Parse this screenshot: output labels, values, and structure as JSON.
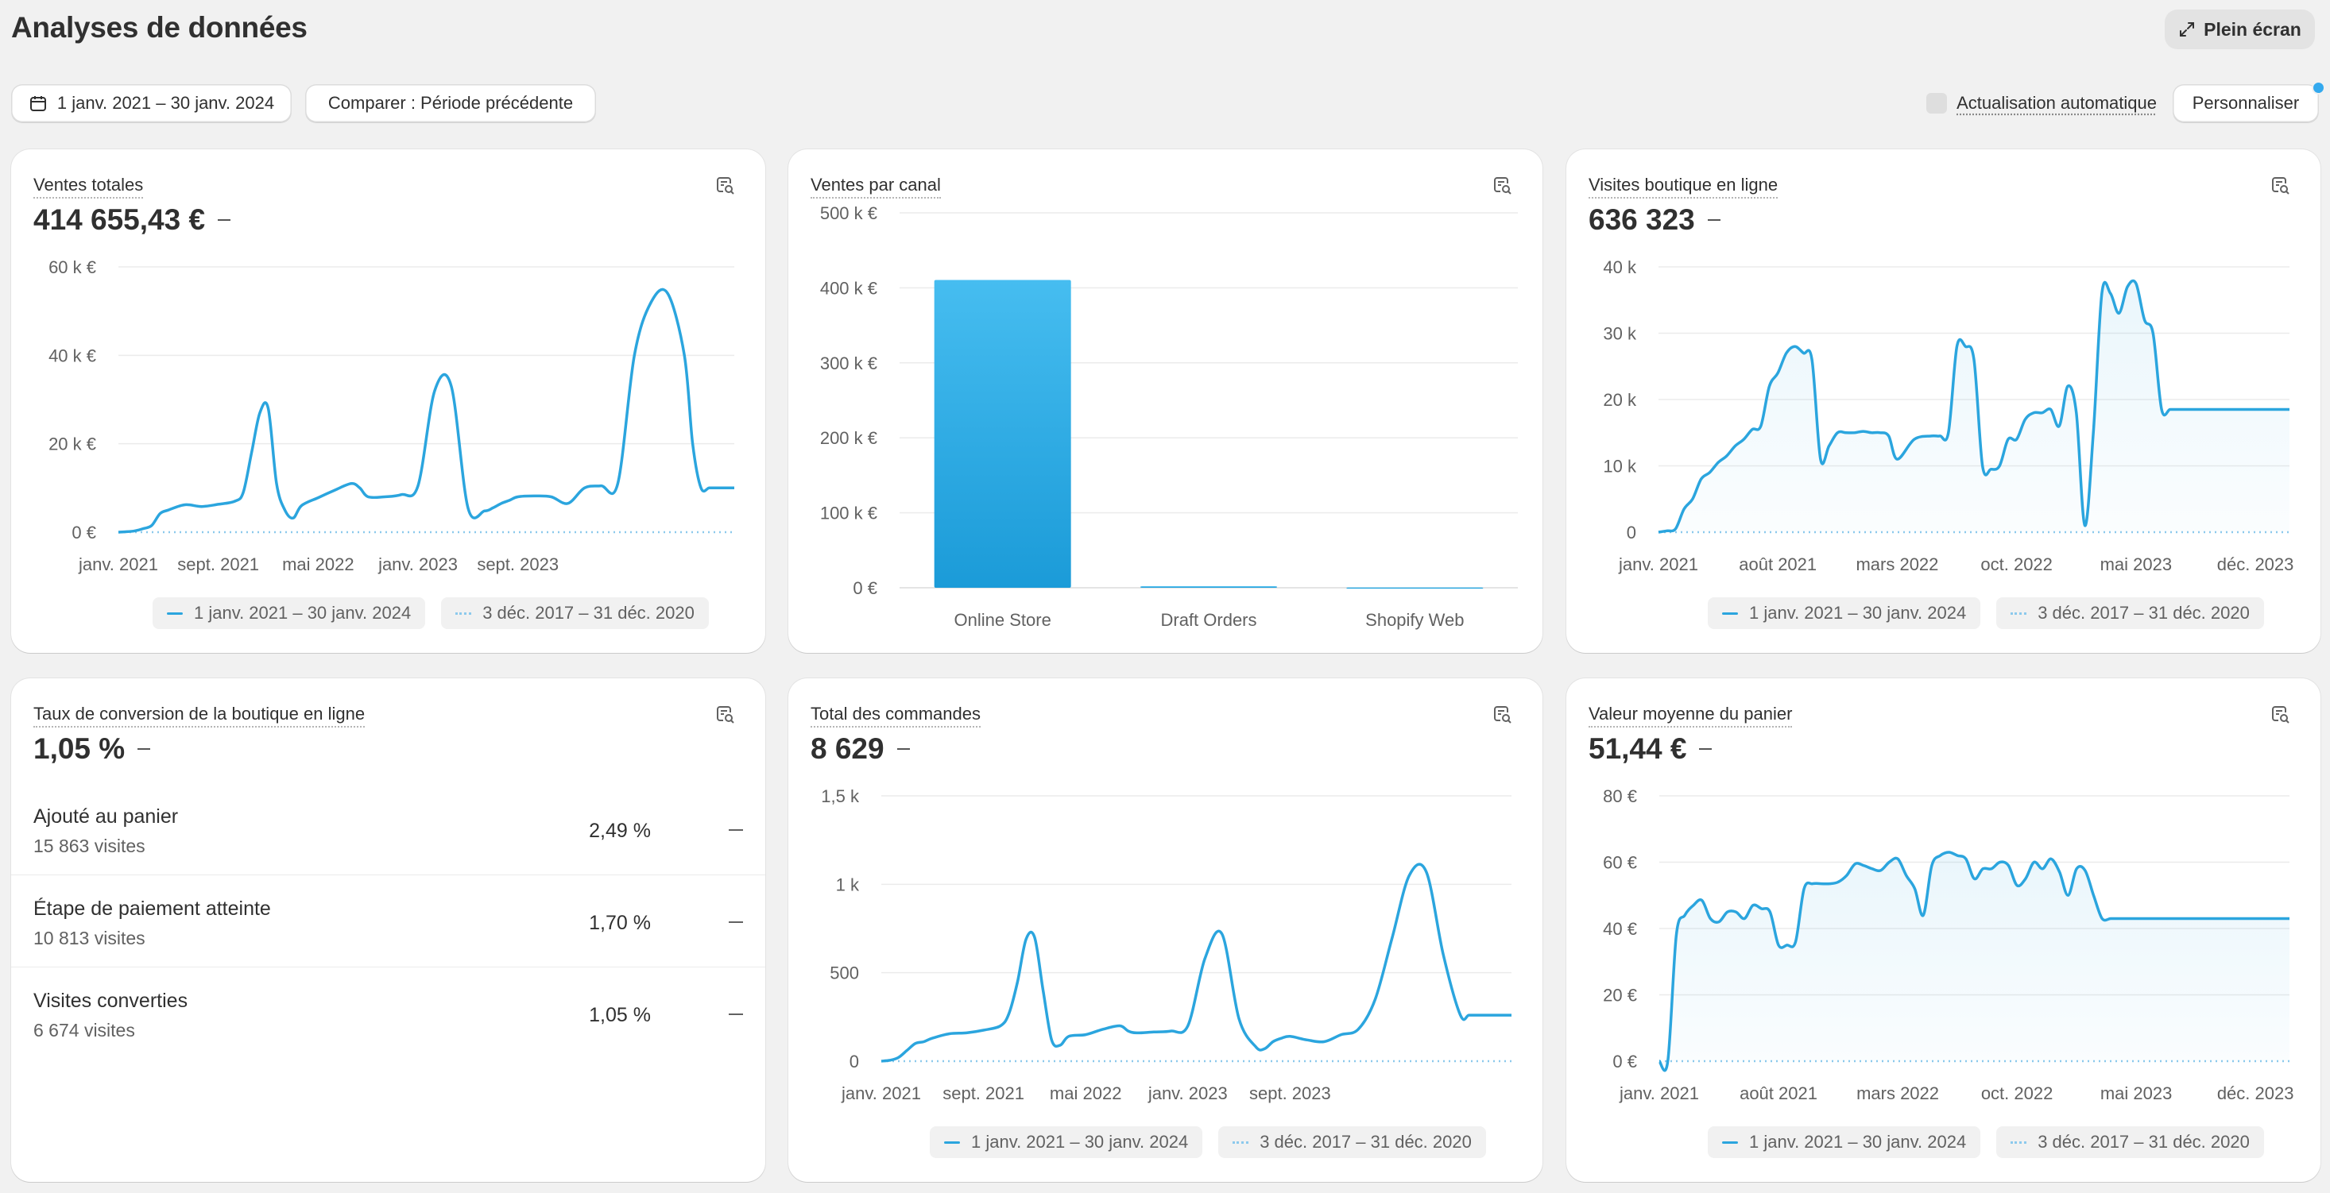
{
  "page": {
    "title": "Analyses de données",
    "fullscreen_label": "Plein écran"
  },
  "toolbar": {
    "date_range": "1 janv. 2021 – 30 janv. 2024",
    "compare": "Comparer : Période précédente",
    "auto_refresh": "Actualisation automatique",
    "customize": "Personnaliser"
  },
  "legend": {
    "current": "1 janv. 2021 – 30 janv. 2024",
    "previous": "3 déc. 2017 – 31 déc. 2020"
  },
  "colors": {
    "accent": "#2ba5de",
    "previous": "#8cc9ec",
    "bar_top": "#46bdf0",
    "bar_bottom": "#1b9bd8"
  },
  "cards": {
    "total_sales": {
      "title": "Ventes totales",
      "value": "414 655,43 €"
    },
    "sales_by_channel": {
      "title": "Ventes par canal"
    },
    "online_store_sessions": {
      "title": "Visites boutique en ligne",
      "value": "636 323"
    },
    "conversion_rate": {
      "title": "Taux de conversion de la boutique en ligne",
      "value": "1,05 %",
      "rows": [
        {
          "label": "Ajouté au panier",
          "count": "15 863 visites",
          "pct": "2,49 %"
        },
        {
          "label": "Étape de paiement atteinte",
          "count": "10 813 visites",
          "pct": "1,70 %"
        },
        {
          "label": "Visites converties",
          "count": "6 674 visites",
          "pct": "1,05 %"
        }
      ]
    },
    "total_orders": {
      "title": "Total des commandes",
      "value": "8 629"
    },
    "average_order_value": {
      "title": "Valeur moyenne du panier",
      "value": "51,44 €"
    }
  },
  "chart_data": [
    {
      "id": "total_sales",
      "type": "line",
      "yticks": [
        "0 €",
        "20 k €",
        "40 k €",
        "60 k €"
      ],
      "ylim": [
        0,
        60000
      ],
      "xticks": [
        "janv. 2021",
        "sept. 2021",
        "mai 2022",
        "janv. 2023",
        "sept. 2023"
      ],
      "series": [
        {
          "name": "1 janv. 2021 – 30 janv. 2024",
          "x": [
            0,
            0.5,
            1,
            1.5,
            2,
            2.5,
            3,
            4,
            5,
            6,
            7,
            7.5,
            8,
            8.5,
            9,
            9.5,
            10,
            10.5,
            11,
            12,
            13,
            14,
            14.5,
            15,
            16,
            17,
            18,
            19,
            20,
            21,
            22,
            22.5,
            23,
            23.5,
            24,
            25,
            26,
            27,
            28,
            29,
            30,
            31,
            32,
            33,
            34,
            34.5,
            35,
            35.5,
            36,
            36.5,
            37
          ],
          "values": [
            0,
            100,
            300,
            800,
            1500,
            4200,
            5000,
            6200,
            5800,
            6300,
            7000,
            9000,
            18000,
            27000,
            28000,
            11000,
            5000,
            3200,
            6000,
            7800,
            9500,
            11000,
            10000,
            8000,
            8000,
            8500,
            10500,
            32000,
            33000,
            5500,
            4800,
            5500,
            6500,
            7200,
            8000,
            8200,
            8000,
            6500,
            10000,
            10500,
            11000,
            40000,
            52000,
            54000,
            40000,
            20000,
            10000,
            10000,
            10000,
            10000,
            10000
          ]
        },
        {
          "name": "3 déc. 2017 – 31 déc. 2020",
          "values": [
            0,
            0
          ]
        }
      ]
    },
    {
      "id": "sales_by_channel",
      "type": "bar",
      "categories": [
        "Online Store",
        "Draft Orders",
        "Shopify Web"
      ],
      "values": [
        410500,
        2000,
        400
      ],
      "yticks": [
        "0 €",
        "100 k €",
        "200 k €",
        "300 k €",
        "400 k €",
        "500 k €"
      ],
      "ylim": [
        0,
        500000
      ]
    },
    {
      "id": "online_store_sessions",
      "type": "area",
      "yticks": [
        "0",
        "10 k",
        "20 k",
        "30 k",
        "40 k"
      ],
      "ylim": [
        0,
        40000
      ],
      "xticks": [
        "janv. 2021",
        "août 2021",
        "mars 2022",
        "oct. 2022",
        "mai 2023",
        "déc. 2023"
      ],
      "series": [
        {
          "name": "1 janv. 2021 – 30 janv. 2024",
          "x": [
            0,
            0.5,
            1,
            1.5,
            2,
            2.5,
            3,
            3.5,
            4,
            4.5,
            5,
            5.5,
            6,
            6.5,
            7,
            7.5,
            8,
            8.5,
            9,
            9.5,
            10,
            10.5,
            11,
            11.5,
            12,
            12.5,
            13,
            13.5,
            14,
            15,
            16,
            16.5,
            17,
            17.5,
            18,
            18.5,
            19,
            19.5,
            20,
            20.5,
            21,
            21.5,
            22,
            22.5,
            23,
            23.5,
            24,
            24.5,
            25,
            25.5,
            26,
            26.5,
            27,
            27.5,
            28,
            28.5,
            29,
            29.5,
            30,
            30.5,
            31,
            31.5,
            32,
            32.5,
            33,
            33.5,
            34,
            34.5,
            35,
            35.5,
            36,
            36.5,
            37
          ],
          "values": [
            0,
            200,
            500,
            3500,
            5000,
            8000,
            9000,
            10500,
            11500,
            13000,
            14000,
            15500,
            16000,
            22000,
            24000,
            27000,
            28000,
            27000,
            26000,
            11000,
            13000,
            15000,
            15000,
            15000,
            15200,
            15000,
            15000,
            14500,
            11000,
            14000,
            14500,
            14500,
            15000,
            28000,
            28000,
            26000,
            10000,
            9500,
            10000,
            14000,
            14000,
            17000,
            18000,
            18000,
            18500,
            16000,
            22000,
            18000,
            1000,
            15000,
            36000,
            36000,
            33000,
            37000,
            37500,
            32000,
            30000,
            18500,
            18500,
            18500,
            18500,
            18500,
            18500,
            18500,
            18500,
            18500,
            18500,
            18500,
            18500,
            18500,
            18500,
            18500,
            18500
          ]
        },
        {
          "name": "3 déc. 2017 – 31 déc. 2020",
          "values": [
            0,
            0
          ]
        }
      ]
    },
    {
      "id": "total_orders",
      "type": "line",
      "yticks": [
        "0",
        "500",
        "1 k",
        "1,5 k"
      ],
      "ylim": [
        0,
        1500
      ],
      "xticks": [
        "janv. 2021",
        "sept. 2021",
        "mai 2022",
        "janv. 2023",
        "sept. 2023"
      ],
      "series": [
        {
          "name": "1 janv. 2021 – 30 janv. 2024",
          "x": [
            0,
            0.5,
            1,
            1.5,
            2,
            2.5,
            3,
            4,
            5,
            6,
            7,
            7.5,
            8,
            8.5,
            9,
            9.5,
            10,
            10.5,
            11,
            12,
            13,
            14,
            14.5,
            15,
            16,
            17,
            18,
            19,
            20,
            21,
            22,
            22.5,
            23,
            23.5,
            24,
            25,
            26,
            27,
            28,
            29,
            30,
            31,
            32,
            33,
            34,
            34.5,
            35,
            35.5,
            36,
            36.5,
            37
          ],
          "values": [
            0,
            5,
            20,
            60,
            100,
            110,
            130,
            155,
            160,
            175,
            200,
            270,
            450,
            690,
            700,
            400,
            120,
            90,
            140,
            150,
            180,
            200,
            170,
            160,
            165,
            170,
            200,
            580,
            720,
            240,
            80,
            70,
            110,
            130,
            140,
            120,
            110,
            150,
            180,
            350,
            700,
            1050,
            1070,
            600,
            260,
            260,
            260,
            260,
            260,
            260,
            260
          ]
        },
        {
          "name": "3 déc. 2017 – 31 déc. 2020",
          "values": [
            0,
            0
          ]
        }
      ]
    },
    {
      "id": "average_order_value",
      "type": "area",
      "yticks": [
        "0 €",
        "20 €",
        "40 €",
        "60 €",
        "80 €"
      ],
      "ylim": [
        0,
        80
      ],
      "xticks": [
        "janv. 2021",
        "août 2021",
        "mars 2022",
        "oct. 2022",
        "mai 2023",
        "déc. 2023"
      ],
      "series": [
        {
          "name": "1 janv. 2021 – 30 janv. 2024",
          "x": [
            0,
            0.5,
            1,
            1.5,
            2,
            2.5,
            3,
            3.5,
            4,
            4.5,
            5,
            5.5,
            6,
            6.5,
            7,
            7.5,
            8,
            8.5,
            9,
            9.5,
            10,
            10.5,
            11,
            11.5,
            12,
            12.5,
            13,
            13.5,
            14,
            14.5,
            15,
            15.5,
            16,
            16.5,
            17,
            17.5,
            18,
            18.5,
            19,
            19.5,
            20,
            20.5,
            21,
            21.5,
            22,
            22.5,
            23,
            23.5,
            24,
            24.5,
            25,
            25.5,
            26,
            26.5,
            27,
            27.5,
            28,
            28.5,
            29,
            29.5,
            30,
            30.5,
            31,
            31.5,
            32,
            32.5,
            33,
            33.5,
            34,
            34.5,
            35,
            35.5,
            36,
            36.5,
            37
          ],
          "values": [
            0,
            0,
            38,
            44,
            47,
            48.5,
            43,
            42,
            45,
            45,
            43,
            47,
            46,
            45,
            35,
            35,
            36,
            52,
            53.5,
            53.5,
            53.5,
            54,
            56,
            59.5,
            59,
            58,
            57.5,
            60,
            61,
            56,
            52,
            44,
            59,
            62,
            63,
            62,
            61,
            55,
            58,
            58,
            60,
            59,
            53,
            55,
            60,
            58,
            61,
            57,
            50,
            58,
            57.5,
            50,
            43,
            43,
            43,
            43,
            43,
            43,
            43,
            43,
            43,
            43,
            43,
            43,
            43,
            43,
            43,
            43,
            43,
            43,
            43,
            43,
            43,
            43,
            43
          ]
        },
        {
          "name": "3 déc. 2017 – 31 déc. 2020",
          "values": [
            0,
            0
          ]
        }
      ]
    }
  ]
}
